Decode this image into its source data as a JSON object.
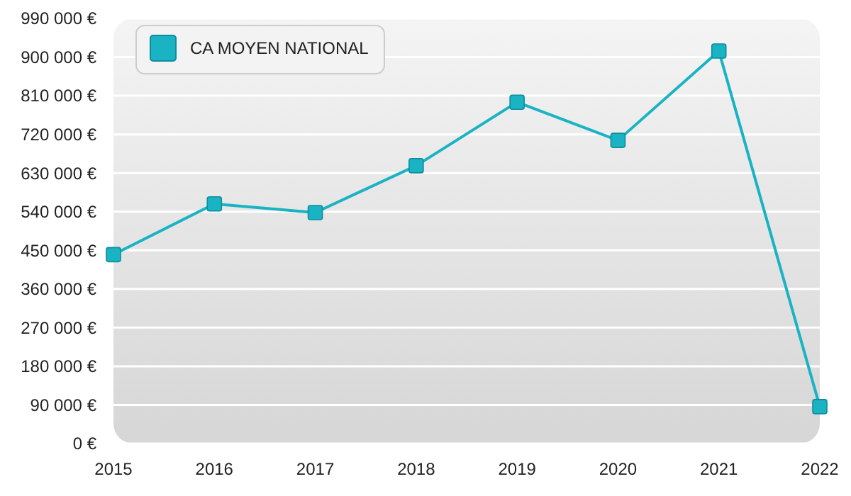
{
  "chart_data": {
    "type": "line",
    "x": [
      2015,
      2016,
      2017,
      2018,
      2019,
      2020,
      2021,
      2022
    ],
    "series": [
      {
        "name": "CA MOYEN NATIONAL",
        "color": "#1ab3c4",
        "values": [
          440000,
          558000,
          538000,
          647000,
          795000,
          706000,
          914000,
          86000
        ]
      }
    ],
    "xlim": [
      2015,
      2022
    ],
    "xticks": [
      2015,
      2016,
      2017,
      2018,
      2019,
      2020,
      2021,
      2022
    ],
    "ylim": [
      0,
      990000
    ],
    "yticks": [
      {
        "value": 0,
        "label": "0 €"
      },
      {
        "value": 90000,
        "label": "90 000 €"
      },
      {
        "value": 180000,
        "label": "180 000 €"
      },
      {
        "value": 270000,
        "label": "270 000 €"
      },
      {
        "value": 360000,
        "label": "360 000 €"
      },
      {
        "value": 450000,
        "label": "450 000 €"
      },
      {
        "value": 540000,
        "label": "540 000 €"
      },
      {
        "value": 630000,
        "label": "630 000 €"
      },
      {
        "value": 720000,
        "label": "720 000 €"
      },
      {
        "value": 810000,
        "label": "810 000 €"
      },
      {
        "value": 900000,
        "label": "900 000 €"
      },
      {
        "value": 990000,
        "label": "990 000 €"
      }
    ],
    "grid": "y",
    "legend": "top left",
    "marker": "square",
    "line_style": "solid"
  }
}
